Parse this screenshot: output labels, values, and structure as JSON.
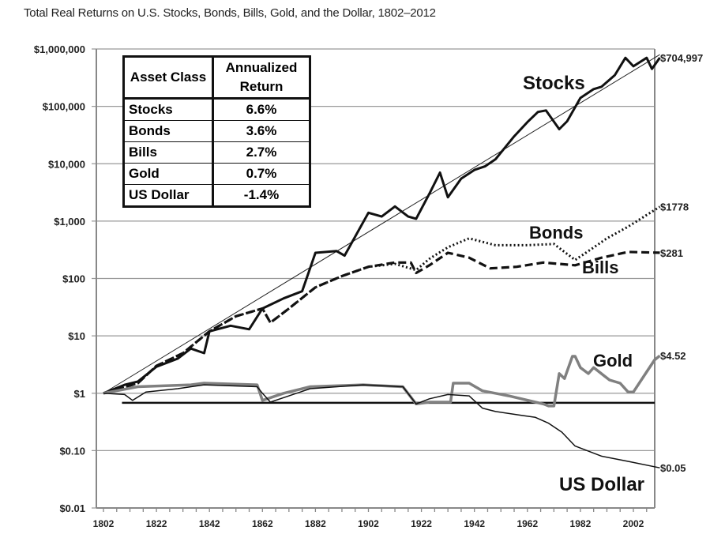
{
  "chart_data": {
    "type": "line",
    "title": "Total Real Returns on U.S. Stocks, Bonds, Bills, Gold, and the Dollar, 1802–2012",
    "xlim": [
      1802,
      2012
    ],
    "ylim": [
      0.01,
      1000000
    ],
    "yscale": "log",
    "x_ticks": [
      "1802",
      "1822",
      "1842",
      "1862",
      "1882",
      "1902",
      "1922",
      "1942",
      "1962",
      "1982",
      "2002"
    ],
    "y_ticks": [
      {
        "v": 1000000,
        "label": "$1,000,000"
      },
      {
        "v": 100000,
        "label": "$100,000"
      },
      {
        "v": 10000,
        "label": "$10,000"
      },
      {
        "v": 1000,
        "label": "$1,000"
      },
      {
        "v": 100,
        "label": "$100"
      },
      {
        "v": 10,
        "label": "$10"
      },
      {
        "v": 1,
        "label": "$1"
      },
      {
        "v": 0.1,
        "label": "$0.10"
      },
      {
        "v": 0.01,
        "label": "$0.01"
      }
    ],
    "grid": true,
    "series": [
      {
        "name": "Stocks",
        "end_label": "$704,997",
        "style": "solid-thick",
        "color": "#111111",
        "points": [
          [
            1802,
            1
          ],
          [
            1810,
            1.4
          ],
          [
            1815,
            1.6
          ],
          [
            1822,
            2.9
          ],
          [
            1830,
            4
          ],
          [
            1835,
            6
          ],
          [
            1840,
            5
          ],
          [
            1842,
            12
          ],
          [
            1850,
            15
          ],
          [
            1857,
            13
          ],
          [
            1862,
            30
          ],
          [
            1870,
            45
          ],
          [
            1877,
            60
          ],
          [
            1882,
            280
          ],
          [
            1890,
            300
          ],
          [
            1893,
            250
          ],
          [
            1902,
            1400
          ],
          [
            1907,
            1200
          ],
          [
            1912,
            1800
          ],
          [
            1917,
            1200
          ],
          [
            1920,
            1100
          ],
          [
            1925,
            3000
          ],
          [
            1929,
            7000
          ],
          [
            1932,
            2600
          ],
          [
            1937,
            5500
          ],
          [
            1942,
            7800
          ],
          [
            1946,
            9000
          ],
          [
            1950,
            12000
          ],
          [
            1957,
            30000
          ],
          [
            1962,
            53000
          ],
          [
            1966,
            80000
          ],
          [
            1969,
            85000
          ],
          [
            1974,
            40000
          ],
          [
            1977,
            55000
          ],
          [
            1982,
            140000
          ],
          [
            1987,
            200000
          ],
          [
            1990,
            220000
          ],
          [
            1995,
            350000
          ],
          [
            1999,
            700000
          ],
          [
            2002,
            500000
          ],
          [
            2007,
            700000
          ],
          [
            2009,
            450000
          ],
          [
            2012,
            704997
          ]
        ]
      },
      {
        "name": "Bonds",
        "end_label": "$1778",
        "style": "dotted",
        "color": "#111111",
        "points": [
          [
            1802,
            1
          ],
          [
            1815,
            1.5
          ],
          [
            1822,
            3
          ],
          [
            1832,
            5
          ],
          [
            1842,
            12
          ],
          [
            1852,
            22
          ],
          [
            1862,
            30
          ],
          [
            1865,
            17
          ],
          [
            1872,
            30
          ],
          [
            1882,
            70
          ],
          [
            1892,
            110
          ],
          [
            1902,
            160
          ],
          [
            1912,
            180
          ],
          [
            1920,
            140
          ],
          [
            1925,
            220
          ],
          [
            1932,
            350
          ],
          [
            1940,
            500
          ],
          [
            1950,
            380
          ],
          [
            1962,
            380
          ],
          [
            1972,
            400
          ],
          [
            1980,
            210
          ],
          [
            1985,
            300
          ],
          [
            1992,
            500
          ],
          [
            2000,
            800
          ],
          [
            2012,
            1778
          ]
        ]
      },
      {
        "name": "Bills",
        "end_label": "$281",
        "style": "dashed",
        "color": "#111111",
        "points": [
          [
            1802,
            1
          ],
          [
            1815,
            1.5
          ],
          [
            1822,
            3
          ],
          [
            1832,
            5
          ],
          [
            1842,
            12
          ],
          [
            1852,
            22
          ],
          [
            1862,
            30
          ],
          [
            1865,
            17
          ],
          [
            1872,
            30
          ],
          [
            1882,
            70
          ],
          [
            1892,
            110
          ],
          [
            1902,
            160
          ],
          [
            1912,
            190
          ],
          [
            1918,
            190
          ],
          [
            1920,
            125
          ],
          [
            1925,
            170
          ],
          [
            1932,
            280
          ],
          [
            1940,
            230
          ],
          [
            1948,
            150
          ],
          [
            1958,
            160
          ],
          [
            1968,
            190
          ],
          [
            1980,
            170
          ],
          [
            1990,
            230
          ],
          [
            2000,
            290
          ],
          [
            2012,
            281
          ]
        ]
      },
      {
        "name": "Gold",
        "end_label": "$4.52",
        "style": "solid-gray",
        "color": "#808080",
        "points": [
          [
            1802,
            1
          ],
          [
            1815,
            1.3
          ],
          [
            1835,
            1.4
          ],
          [
            1840,
            1.5
          ],
          [
            1860,
            1.4
          ],
          [
            1862,
            0.75
          ],
          [
            1870,
            1.0
          ],
          [
            1880,
            1.3
          ],
          [
            1900,
            1.4
          ],
          [
            1915,
            1.3
          ],
          [
            1920,
            0.65
          ],
          [
            1925,
            0.7
          ],
          [
            1933,
            0.7
          ],
          [
            1934,
            1.5
          ],
          [
            1940,
            1.5
          ],
          [
            1945,
            1.1
          ],
          [
            1955,
            0.9
          ],
          [
            1965,
            0.7
          ],
          [
            1968,
            0.65
          ],
          [
            1970,
            0.6
          ],
          [
            1972,
            0.6
          ],
          [
            1974,
            2.2
          ],
          [
            1976,
            1.8
          ],
          [
            1979,
            4.4
          ],
          [
            1980,
            4.4
          ],
          [
            1982,
            2.8
          ],
          [
            1985,
            2.2
          ],
          [
            1987,
            2.8
          ],
          [
            1993,
            1.7
          ],
          [
            1997,
            1.5
          ],
          [
            2000,
            1.05
          ],
          [
            2002,
            1.05
          ],
          [
            2006,
            2.0
          ],
          [
            2010,
            3.8
          ],
          [
            2012,
            4.52
          ]
        ]
      },
      {
        "name": "US Dollar",
        "end_label": "$0.05",
        "style": "solid-thin",
        "color": "#111111",
        "points": [
          [
            1802,
            1
          ],
          [
            1810,
            0.95
          ],
          [
            1813,
            0.75
          ],
          [
            1818,
            1.05
          ],
          [
            1830,
            1.2
          ],
          [
            1840,
            1.4
          ],
          [
            1860,
            1.3
          ],
          [
            1862,
            1.0
          ],
          [
            1865,
            0.7
          ],
          [
            1880,
            1.2
          ],
          [
            1900,
            1.4
          ],
          [
            1915,
            1.3
          ],
          [
            1920,
            0.65
          ],
          [
            1925,
            0.8
          ],
          [
            1932,
            0.95
          ],
          [
            1940,
            0.9
          ],
          [
            1945,
            0.55
          ],
          [
            1950,
            0.48
          ],
          [
            1960,
            0.41
          ],
          [
            1965,
            0.38
          ],
          [
            1970,
            0.3
          ],
          [
            1975,
            0.21
          ],
          [
            1980,
            0.12
          ],
          [
            1990,
            0.08
          ],
          [
            2000,
            0.065
          ],
          [
            2012,
            0.05
          ]
        ]
      }
    ],
    "trendline": {
      "points": [
        [
          1802,
          1
        ],
        [
          2012,
          800000
        ]
      ]
    },
    "reference_line": {
      "y": 0.68,
      "x": [
        1809,
        2012
      ]
    },
    "annotations": [
      "Stocks",
      "Bonds",
      "Bills",
      "Gold",
      "US Dollar"
    ],
    "table": {
      "headers": [
        "Asset Class",
        "Annualized Return"
      ],
      "rows": [
        [
          "Stocks",
          "6.6%"
        ],
        [
          "Bonds",
          "3.6%"
        ],
        [
          "Bills",
          "2.7%"
        ],
        [
          "Gold",
          "0.7%"
        ],
        [
          "US Dollar",
          "-1.4%"
        ]
      ]
    }
  }
}
